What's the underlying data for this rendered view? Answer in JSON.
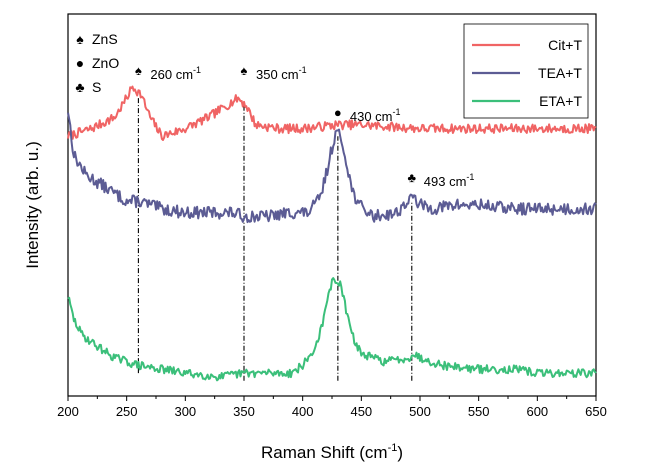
{
  "chart_data": {
    "type": "line",
    "title": "",
    "xlabel": "Raman Shift (cm",
    "xlabel_sup": "-1",
    "xlabel_suffix": ")",
    "ylabel": "Intensity (arb. u.)",
    "xlim": [
      200,
      650
    ],
    "ylim": [
      0,
      100
    ],
    "xticks": [
      200,
      250,
      300,
      350,
      400,
      450,
      500,
      550,
      600,
      650
    ],
    "yticks_shown": false,
    "legend_position": "top-right",
    "series": [
      {
        "name": "Cit+T",
        "color": "#f06464",
        "seed": 7,
        "noise": 1.2,
        "points": [
          [
            200,
            68
          ],
          [
            220,
            70
          ],
          [
            240,
            73
          ],
          [
            250,
            78
          ],
          [
            255,
            81
          ],
          [
            262,
            79
          ],
          [
            270,
            73
          ],
          [
            280,
            68
          ],
          [
            300,
            70
          ],
          [
            320,
            73
          ],
          [
            340,
            77
          ],
          [
            345,
            78
          ],
          [
            352,
            76
          ],
          [
            360,
            71
          ],
          [
            380,
            70
          ],
          [
            400,
            70
          ],
          [
            430,
            71
          ],
          [
            450,
            71
          ],
          [
            500,
            70
          ],
          [
            550,
            70
          ],
          [
            600,
            70
          ],
          [
            650,
            70
          ]
        ]
      },
      {
        "name": "TEA+T",
        "color": "#5c5c94",
        "seed": 13,
        "noise": 1.6,
        "points": [
          [
            200,
            75
          ],
          [
            205,
            63
          ],
          [
            215,
            58
          ],
          [
            230,
            55
          ],
          [
            250,
            51
          ],
          [
            260,
            51
          ],
          [
            280,
            49
          ],
          [
            300,
            48
          ],
          [
            320,
            48
          ],
          [
            340,
            48
          ],
          [
            350,
            47
          ],
          [
            370,
            47
          ],
          [
            390,
            48
          ],
          [
            405,
            48
          ],
          [
            415,
            52
          ],
          [
            420,
            58
          ],
          [
            425,
            65
          ],
          [
            428,
            69
          ],
          [
            432,
            68
          ],
          [
            437,
            62
          ],
          [
            442,
            54
          ],
          [
            448,
            50
          ],
          [
            460,
            47
          ],
          [
            480,
            48
          ],
          [
            490,
            51
          ],
          [
            495,
            52
          ],
          [
            500,
            50
          ],
          [
            510,
            49
          ],
          [
            530,
            50
          ],
          [
            550,
            50
          ],
          [
            580,
            49
          ],
          [
            600,
            49
          ],
          [
            650,
            49
          ]
        ]
      },
      {
        "name": "ETA+T",
        "color": "#3bbf7a",
        "seed": 29,
        "noise": 1.1,
        "points": [
          [
            200,
            26
          ],
          [
            205,
            20
          ],
          [
            212,
            16
          ],
          [
            225,
            13
          ],
          [
            240,
            10
          ],
          [
            260,
            8
          ],
          [
            280,
            7
          ],
          [
            300,
            6
          ],
          [
            330,
            5
          ],
          [
            350,
            6
          ],
          [
            370,
            6
          ],
          [
            390,
            6
          ],
          [
            400,
            8
          ],
          [
            410,
            12
          ],
          [
            418,
            20
          ],
          [
            423,
            28
          ],
          [
            427,
            31
          ],
          [
            432,
            29
          ],
          [
            436,
            24
          ],
          [
            442,
            16
          ],
          [
            450,
            11
          ],
          [
            470,
            9
          ],
          [
            490,
            10
          ],
          [
            495,
            11
          ],
          [
            500,
            10
          ],
          [
            520,
            8
          ],
          [
            550,
            7
          ],
          [
            580,
            7
          ],
          [
            600,
            6
          ],
          [
            650,
            6
          ]
        ]
      }
    ],
    "reference_lines": [
      {
        "x": 260,
        "y_from": 6,
        "y_to": 78
      },
      {
        "x": 350,
        "y_from": 4,
        "y_to": 76
      },
      {
        "x": 430,
        "y_from": 4,
        "y_to": 68
      },
      {
        "x": 493,
        "y_from": 4,
        "y_to": 51
      }
    ],
    "annotations": [
      {
        "x": 260,
        "y": 84,
        "symbol": "♠",
        "label": "260 cm",
        "sup": "-1"
      },
      {
        "x": 350,
        "y": 84,
        "symbol": "♠",
        "label": "350 cm",
        "sup": "-1"
      },
      {
        "x": 430,
        "y": 73,
        "symbol": "●",
        "label": "430 cm",
        "sup": "-1"
      },
      {
        "x": 493,
        "y": 56,
        "symbol": "♣",
        "label": "493 cm",
        "sup": "-1"
      }
    ],
    "symbol_key": [
      {
        "symbol": "♠",
        "label": "ZnS"
      },
      {
        "symbol": "●",
        "label": "ZnO"
      },
      {
        "symbol": "♣",
        "label": "S"
      }
    ]
  }
}
